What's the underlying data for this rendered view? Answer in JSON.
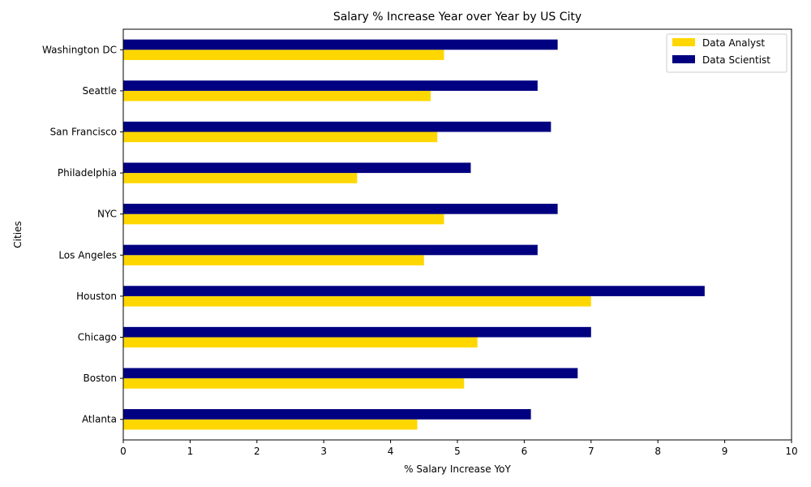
{
  "chart_data": {
    "type": "bar",
    "orientation": "horizontal",
    "title": "Salary % Increase Year over Year by US City",
    "xlabel": "% Salary Increase YoY",
    "ylabel": "Cities",
    "xlim": [
      0,
      10
    ],
    "xticks": [
      "0",
      "1",
      "2",
      "3",
      "4",
      "5",
      "6",
      "7",
      "8",
      "9",
      "10"
    ],
    "grid": false,
    "legend_position": "top-right",
    "categories": [
      "Atlanta",
      "Boston",
      "Chicago",
      "Houston",
      "Los Angeles",
      "NYC",
      "Philadelphia",
      "San Francisco",
      "Seattle",
      "Washington DC"
    ],
    "series": [
      {
        "name": "Data Analyst",
        "color": "#FFD700",
        "values": [
          4.4,
          5.1,
          5.3,
          7.0,
          4.5,
          4.8,
          3.5,
          4.7,
          4.6,
          4.8
        ]
      },
      {
        "name": "Data Scientist",
        "color": "#000080",
        "values": [
          6.1,
          6.8,
          7.0,
          8.7,
          6.2,
          6.5,
          5.2,
          6.4,
          6.2,
          6.5
        ]
      }
    ]
  }
}
